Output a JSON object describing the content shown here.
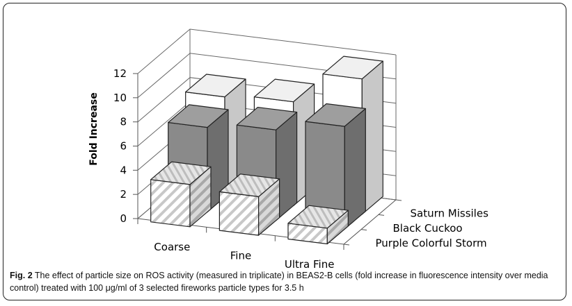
{
  "caption": {
    "label": "Fig. 2",
    "text": "The effect of particle size on ROS activity (measured in triplicate) in BEAS2-B cells (fold increase in fluorescence intensity over media control) treated with 100 μg/ml of 3 selected fireworks particle types for 3.5 h"
  },
  "chart_data": {
    "type": "bar",
    "subtype": "3d-bar",
    "ylabel": "Fold Increase",
    "ylim": [
      0,
      12
    ],
    "yticks": [
      "0",
      "2",
      "4",
      "6",
      "8",
      "10",
      "12"
    ],
    "categories": [
      "Coarse",
      "Fine",
      "Ultra Fine"
    ],
    "series": [
      {
        "name": "Purple Colorful Storm",
        "values": [
          3.5,
          3.2,
          1.3
        ],
        "color": "#ffffff",
        "pattern": "diagonal-hatch"
      },
      {
        "name": "Black Cuckoo",
        "values": [
          7.0,
          7.5,
          8.5
        ],
        "color": "#8c8c8c",
        "pattern": "solid"
      },
      {
        "name": "Saturn Missiles",
        "values": [
          8.3,
          8.6,
          11.2
        ],
        "color": "#ffffff",
        "pattern": "solid"
      }
    ],
    "grid": true
  }
}
